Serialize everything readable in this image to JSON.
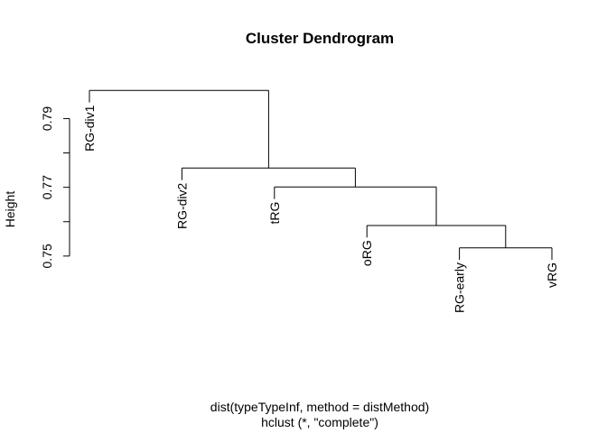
{
  "chart_data": {
    "type": "dendrogram",
    "title": "Cluster Dendrogram",
    "ylabel": "Height",
    "xlabel": "dist(typeTypeInf, method = distMethod)",
    "sub": "hclust (*, \"complete\")",
    "ylim": [
      0.7455,
      0.8035
    ],
    "yticks": [
      0.75,
      0.77,
      0.79
    ],
    "ytick_labels": [
      "0.75",
      "0.77",
      "0.79"
    ],
    "label_drop": 0.0035,
    "leaves": [
      "RG-div1",
      "RG-div2",
      "tRG",
      "oRG",
      "RG-early",
      "vRG"
    ],
    "merges": [
      {
        "left": 4,
        "right": 5,
        "height": 0.7524
      },
      {
        "left": 3,
        "right": "m0",
        "height": 0.7589
      },
      {
        "left": 2,
        "right": "m1",
        "height": 0.7701
      },
      {
        "left": 1,
        "right": "m2",
        "height": 0.7756
      },
      {
        "left": 0,
        "right": "m3",
        "height": 0.7982
      }
    ]
  }
}
